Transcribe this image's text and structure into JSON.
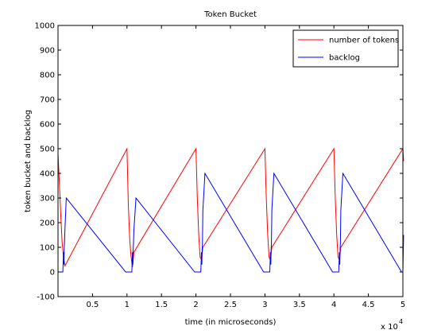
{
  "chart_data": {
    "type": "line",
    "title": "Token Bucket",
    "xlabel": "time (in microseconds)",
    "ylabel": "token bucket and backlog",
    "x_multiplier_label": "x 10",
    "x_multiplier_exponent": "4",
    "xlim": [
      0,
      50000
    ],
    "ylim": [
      -100,
      1000
    ],
    "x_ticks": [
      5000,
      10000,
      15000,
      20000,
      25000,
      30000,
      35000,
      40000,
      45000,
      50000
    ],
    "x_tick_labels": [
      "0.5",
      "1",
      "1.5",
      "2",
      "2.5",
      "3",
      "3.5",
      "4",
      "4.5",
      "5"
    ],
    "y_ticks": [
      -100,
      0,
      100,
      200,
      300,
      400,
      500,
      600,
      700,
      800,
      900,
      1000
    ],
    "y_tick_labels": [
      "-100",
      "0",
      "100",
      "200",
      "300",
      "400",
      "500",
      "600",
      "700",
      "800",
      "900",
      "1000"
    ],
    "grid": false,
    "legend_position": "top-right",
    "series": [
      {
        "name": "number of tokens",
        "color": "#ff0000",
        "x": [
          0,
          400,
          600,
          800,
          1000,
          10000,
          10200,
          10400,
          10600,
          10800,
          11000,
          20000,
          20200,
          20400,
          20600,
          20800,
          21000,
          30000,
          30200,
          30400,
          30600,
          30800,
          31000,
          40000,
          40200,
          40400,
          40600,
          40800,
          41000,
          50000,
          50100
        ],
        "y": [
          480,
          230,
          120,
          60,
          25,
          500,
          270,
          130,
          60,
          20,
          80,
          500,
          300,
          150,
          60,
          50,
          100,
          500,
          300,
          150,
          60,
          50,
          100,
          500,
          300,
          150,
          60,
          50,
          100,
          500,
          450
        ]
      },
      {
        "name": "backlog",
        "color": "#0000ff",
        "x": [
          0,
          700,
          800,
          850,
          900,
          950,
          1000,
          1200,
          9800,
          10700,
          10800,
          10850,
          10900,
          10950,
          11000,
          11300,
          19800,
          20700,
          20800,
          20850,
          20900,
          20950,
          21000,
          21300,
          29800,
          30700,
          30800,
          30850,
          30900,
          30950,
          31000,
          31300,
          39800,
          40700,
          40800,
          40850,
          40900,
          40950,
          41000,
          41300,
          49800,
          50000,
          50100
        ],
        "y": [
          0,
          0,
          80,
          30,
          90,
          120,
          170,
          300,
          0,
          0,
          80,
          30,
          90,
          120,
          170,
          300,
          0,
          0,
          80,
          30,
          90,
          120,
          250,
          400,
          0,
          0,
          80,
          30,
          90,
          120,
          250,
          400,
          0,
          0,
          80,
          30,
          90,
          120,
          250,
          400,
          0,
          0,
          150
        ]
      }
    ]
  }
}
